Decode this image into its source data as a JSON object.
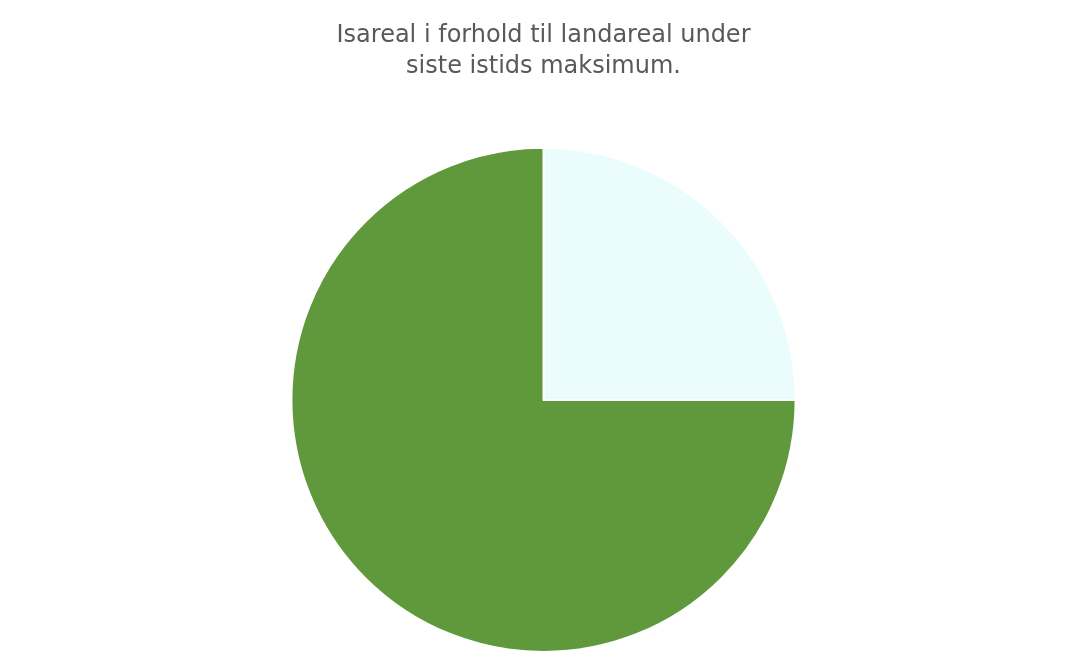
{
  "chart_data": {
    "type": "pie",
    "title": "Isareal i forhold til landareal under siste istids maksimum.",
    "categories": [
      null,
      null
    ],
    "values": [
      25,
      75
    ],
    "colors": [
      "#ebfcfd",
      "#60983c"
    ],
    "legend": false
  }
}
